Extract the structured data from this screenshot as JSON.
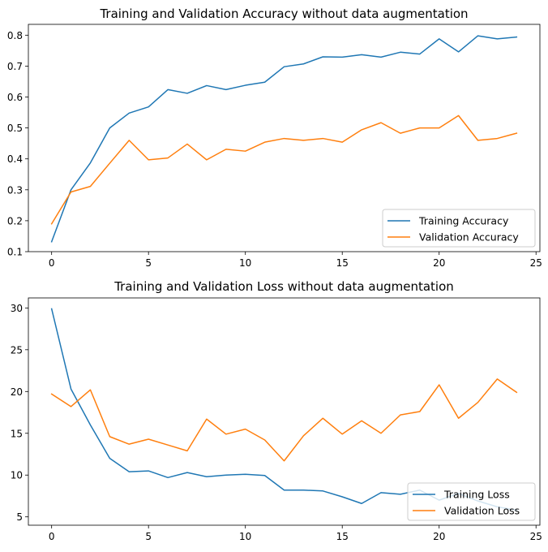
{
  "chart_data": [
    {
      "type": "line",
      "title": "Training and Validation Accuracy without data augmentation",
      "xlabel": "",
      "ylabel": "",
      "xlim": [
        -1.2,
        25.2
      ],
      "ylim": [
        0.1,
        0.835
      ],
      "xticks": [
        0,
        5,
        10,
        15,
        20,
        25
      ],
      "yticks": [
        0.1,
        0.2,
        0.3,
        0.4,
        0.5,
        0.6,
        0.7,
        0.8
      ],
      "x": [
        0,
        1,
        2,
        3,
        4,
        5,
        6,
        7,
        8,
        9,
        10,
        11,
        12,
        13,
        14,
        15,
        16,
        17,
        18,
        19,
        20,
        21,
        22,
        23,
        24
      ],
      "legend_position": "lower right",
      "series": [
        {
          "name": "Training Accuracy",
          "color": "#1f77b4",
          "values": [
            0.132,
            0.3,
            0.387,
            0.5,
            0.548,
            0.568,
            0.624,
            0.612,
            0.637,
            0.624,
            0.638,
            0.648,
            0.698,
            0.707,
            0.73,
            0.729,
            0.737,
            0.729,
            0.745,
            0.739,
            0.788,
            0.746,
            0.798,
            0.788,
            0.794
          ]
        },
        {
          "name": "Validation Accuracy",
          "color": "#ff7f0e",
          "values": [
            0.19,
            0.293,
            0.311,
            0.386,
            0.46,
            0.397,
            0.403,
            0.448,
            0.397,
            0.431,
            0.425,
            0.454,
            0.466,
            0.46,
            0.466,
            0.454,
            0.494,
            0.517,
            0.483,
            0.5,
            0.5,
            0.54,
            0.46,
            0.466,
            0.483
          ]
        }
      ]
    },
    {
      "type": "line",
      "title": "Training and Validation Loss without data augmentation",
      "xlabel": "",
      "ylabel": "",
      "xlim": [
        -1.2,
        25.2
      ],
      "ylim": [
        4.0,
        31.2
      ],
      "xticks": [
        0,
        5,
        10,
        15,
        20,
        25
      ],
      "yticks": [
        5,
        10,
        15,
        20,
        25,
        30
      ],
      "x": [
        0,
        1,
        2,
        3,
        4,
        5,
        6,
        7,
        8,
        9,
        10,
        11,
        12,
        13,
        14,
        15,
        16,
        17,
        18,
        19,
        20,
        21,
        22,
        23,
        24
      ],
      "legend_position": "lower right",
      "series": [
        {
          "name": "Training Loss",
          "color": "#1f77b4",
          "values": [
            29.9,
            20.3,
            16.0,
            12.0,
            10.4,
            10.5,
            9.7,
            10.3,
            9.8,
            10.0,
            10.1,
            9.95,
            8.2,
            8.2,
            8.1,
            7.4,
            6.6,
            7.9,
            7.7,
            8.2,
            7.0,
            7.8,
            6.9,
            6.2,
            5.8
          ]
        },
        {
          "name": "Validation Loss",
          "color": "#ff7f0e",
          "values": [
            19.7,
            18.2,
            20.2,
            14.6,
            13.7,
            14.3,
            13.6,
            12.9,
            16.7,
            14.9,
            15.5,
            14.2,
            11.7,
            14.7,
            16.8,
            14.9,
            16.5,
            15.0,
            17.2,
            17.6,
            20.8,
            16.8,
            18.7,
            21.5,
            19.9
          ]
        }
      ]
    }
  ]
}
